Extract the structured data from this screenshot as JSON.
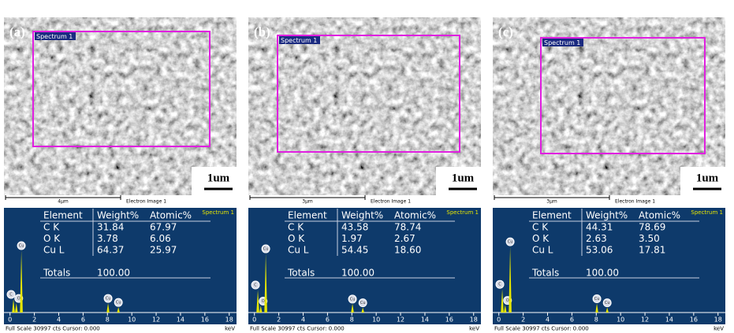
{
  "panels": [
    {
      "label": "(a)",
      "roi_label": "Spectrum 1",
      "scale_label": "1um",
      "scalebar_text": "4µm",
      "image_caption": "Electron Image 1",
      "table": {
        "header": [
          "Element",
          "Weight%",
          "Atomic%"
        ],
        "rows": [
          [
            "C K",
            "31.84",
            "67.97"
          ],
          [
            "O K",
            "3.78",
            "6.06"
          ],
          [
            "Cu L",
            "64.37",
            "25.97"
          ]
        ],
        "totals": [
          "Totals",
          "100.00"
        ]
      },
      "spectrum": {
        "type": "spectrum",
        "title": "Spectrum 1",
        "xlim": [
          -0.5,
          18.6
        ],
        "ylim": [
          0,
          30997
        ],
        "xticks": [
          0,
          2,
          4,
          6,
          8,
          10,
          12,
          14,
          16,
          18
        ],
        "x_unit": "keV",
        "footer": "Full Scale 30997 cts Cursor: 0.000",
        "color": "#e6e600",
        "peaks": [
          {
            "label": "C",
            "x": 0.28,
            "height": 4000
          },
          {
            "label": "O",
            "x": 0.52,
            "height": 2800
          },
          {
            "label": "Cu",
            "x": 0.93,
            "height": 18550
          },
          {
            "label": "Cu",
            "x": 8.05,
            "height": 2800
          },
          {
            "label": "Cu",
            "x": 8.9,
            "height": 1600
          }
        ]
      }
    },
    {
      "label": "(b)",
      "roi_label": "Spectrum 1",
      "scale_label": "1um",
      "scalebar_text": "3µm",
      "image_caption": "Electron Image 1",
      "table": {
        "header": [
          "Element",
          "Weight%",
          "Atomic%"
        ],
        "rows": [
          [
            "C K",
            "43.58",
            "78.74"
          ],
          [
            "O K",
            "1.97",
            "2.67"
          ],
          [
            "Cu L",
            "54.45",
            "18.60"
          ]
        ],
        "totals": [
          "Totals",
          "100.00"
        ]
      },
      "spectrum": {
        "type": "spectrum",
        "title": "Spectrum 1",
        "xlim": [
          -0.5,
          18.6
        ],
        "ylim": [
          0,
          30997
        ],
        "xticks": [
          0,
          2,
          4,
          6,
          8,
          10,
          12,
          14,
          16,
          18
        ],
        "x_unit": "keV",
        "footer": "Full Scale 30997 cts Cursor: 0.000",
        "color": "#e6e600",
        "peaks": [
          {
            "label": "C",
            "x": 0.28,
            "height": 6800
          },
          {
            "label": "O",
            "x": 0.52,
            "height": 2000
          },
          {
            "label": "Cu",
            "x": 0.93,
            "height": 17600
          },
          {
            "label": "Cu",
            "x": 8.05,
            "height": 2600
          },
          {
            "label": "Cu",
            "x": 8.9,
            "height": 1500
          }
        ]
      }
    },
    {
      "label": "(c)",
      "roi_label": "Spectrum 1",
      "scale_label": "1um",
      "scalebar_text": "3µm",
      "image_caption": "Electron Image 1",
      "table": {
        "header": [
          "Element",
          "Weight%",
          "Atomic%"
        ],
        "rows": [
          [
            "C K",
            "44.31",
            "78.69"
          ],
          [
            "O K",
            "2.63",
            "3.50"
          ],
          [
            "Cu L",
            "53.06",
            "17.81"
          ]
        ],
        "totals": [
          "Totals",
          "100.00"
        ]
      },
      "spectrum": {
        "type": "spectrum",
        "title": "Spectrum 1",
        "xlim": [
          -0.5,
          18.6
        ],
        "ylim": [
          0,
          30997
        ],
        "xticks": [
          0,
          2,
          4,
          6,
          8,
          10,
          12,
          14,
          16,
          18
        ],
        "x_unit": "keV",
        "footer": "Full Scale 30997 cts Cursor: 0.000",
        "color": "#e6e600",
        "peaks": [
          {
            "label": "C",
            "x": 0.28,
            "height": 7000
          },
          {
            "label": "O",
            "x": 0.52,
            "height": 2200
          },
          {
            "label": "Cu",
            "x": 0.93,
            "height": 19700
          },
          {
            "label": "Cu",
            "x": 8.05,
            "height": 2700
          },
          {
            "label": "Cu",
            "x": 8.9,
            "height": 1500
          }
        ]
      }
    }
  ]
}
